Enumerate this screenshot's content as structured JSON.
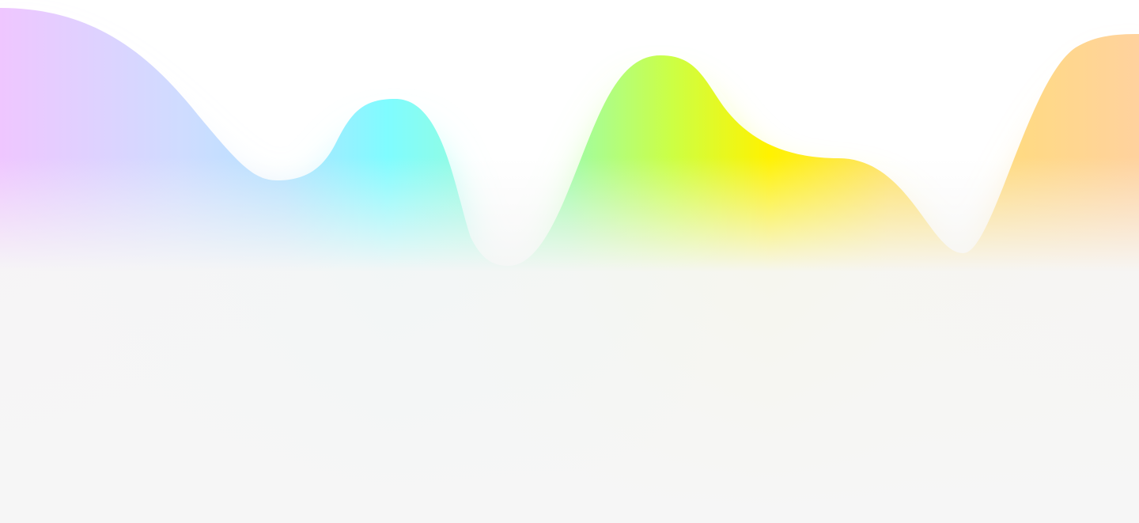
{
  "colors": {
    "background": "#ffffff",
    "fade": "#f6f6f6",
    "violet": "#efc6ff",
    "periwinkle": "#cfdcff",
    "sky": "#b4e2ff",
    "cyan": "#7ffcff",
    "mint": "#98fbd7",
    "green": "#9ffca6",
    "lime": "#ccff44",
    "yellow": "#fff200",
    "gold": "#ffe266",
    "orange": "#ffd29e"
  }
}
